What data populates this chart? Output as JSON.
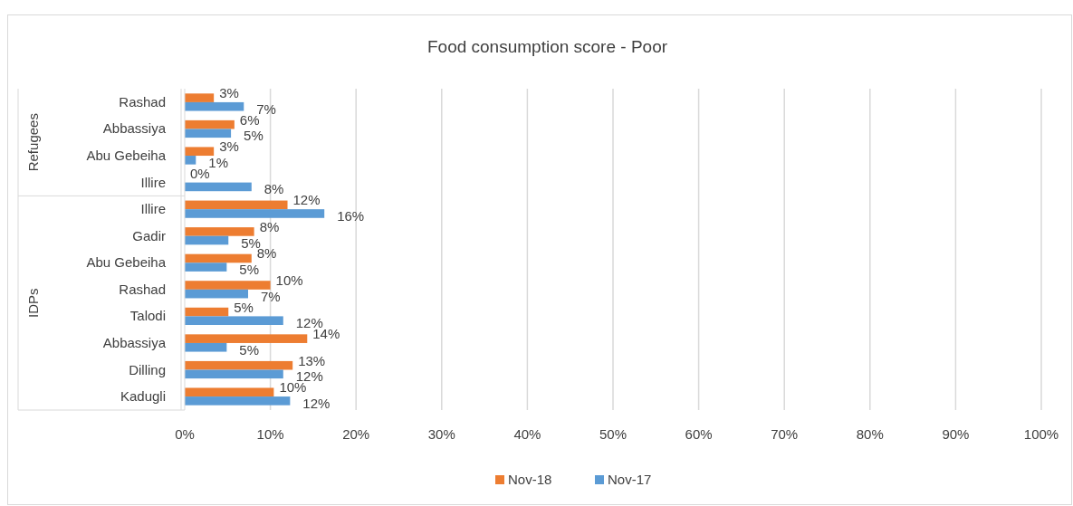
{
  "chart_data": {
    "type": "bar",
    "orientation": "horizontal",
    "title": "Food consumption score - Poor",
    "categories": [
      "Rashad",
      "Abbassiya",
      "Abu Gebeiha",
      "Illire",
      "Illire",
      "Gadir",
      "Abu Gebeiha",
      "Rashad",
      "Talodi",
      "Abbassiya",
      "Dilling",
      "Kadugli"
    ],
    "series": [
      {
        "name": "Nov-18",
        "color": "#ed7d31",
        "values": [
          3.4,
          5.8,
          3.4,
          0,
          12.0,
          8.1,
          7.8,
          10.0,
          5.1,
          14.3,
          12.6,
          10.4
        ],
        "value_labels": [
          "3%",
          "6%",
          "3%",
          "0%",
          "12%",
          "8%",
          "8%",
          "10%",
          "5%",
          "14%",
          "13%",
          "10%"
        ]
      },
      {
        "name": "Nov-17",
        "color": "#5b9bd5",
        "values": [
          6.9,
          5.4,
          1.3,
          7.8,
          16.3,
          5.1,
          4.9,
          7.4,
          11.5,
          4.9,
          11.5,
          12.3
        ],
        "value_labels": [
          "7%",
          "5%",
          "1%",
          "8%",
          "16%",
          "5%",
          "5%",
          "7%",
          "12%",
          "5%",
          "12%",
          "12%"
        ]
      }
    ],
    "annotations": [
      "Refugees",
      "IDPs"
    ],
    "xlim": [
      0,
      100
    ],
    "xticks": [
      {
        "value": 0,
        "label": "0%"
      },
      {
        "value": 10,
        "label": "10%"
      },
      {
        "value": 20,
        "label": "20%"
      },
      {
        "value": 30,
        "label": "30%"
      },
      {
        "value": 40,
        "label": "40%"
      },
      {
        "value": 50,
        "label": "50%"
      },
      {
        "value": 60,
        "label": "60%"
      },
      {
        "value": 70,
        "label": "70%"
      },
      {
        "value": 80,
        "label": "80%"
      },
      {
        "value": 90,
        "label": "90%"
      },
      {
        "value": 100,
        "label": "100%"
      }
    ],
    "grid": "x",
    "legend": "bottom"
  }
}
